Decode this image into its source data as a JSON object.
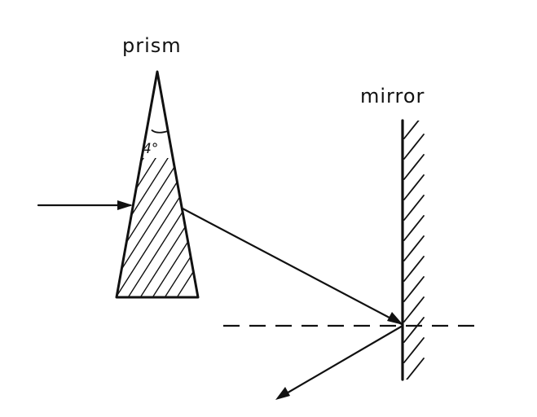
{
  "labels": {
    "prism": "prism",
    "mirror": "mirror",
    "prism_angle": "4°"
  },
  "colors": {
    "ink": "#111111",
    "background": "#ffffff"
  }
}
